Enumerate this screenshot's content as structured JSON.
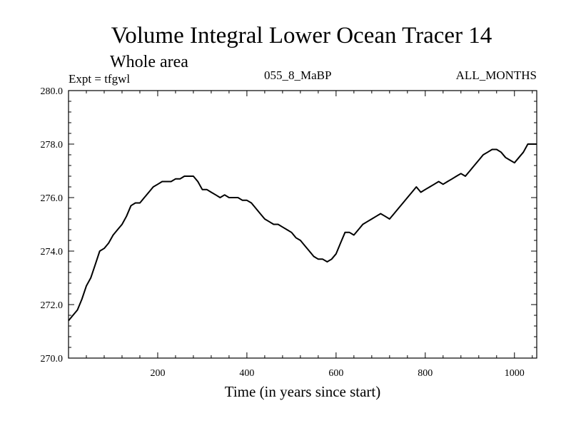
{
  "chart_data": {
    "type": "line",
    "title": "Volume Integral Lower Ocean Tracer 14",
    "subtitle": "Whole area",
    "annotations": {
      "experiment": "Expt = tfgwl",
      "run": "055_8_MaBP",
      "months": "ALL_MONTHS"
    },
    "xlabel": "Time (in years since start)",
    "ylabel": "",
    "xlim": [
      0,
      1050
    ],
    "ylim": [
      270.0,
      280.0
    ],
    "x_ticks": [
      200,
      400,
      600,
      800,
      1000
    ],
    "x_tick_labels": [
      "200",
      "400",
      "600",
      "800",
      "1000"
    ],
    "y_ticks": [
      270.0,
      272.0,
      274.0,
      276.0,
      278.0,
      280.0
    ],
    "y_tick_labels": [
      "270.0",
      "272.0",
      "274.0",
      "276.0",
      "278.0",
      "280.0"
    ],
    "series": [
      {
        "name": "Volume Integral Lower Ocean Tracer 14",
        "x": [
          0,
          10,
          20,
          30,
          40,
          50,
          60,
          70,
          80,
          90,
          100,
          110,
          120,
          130,
          140,
          150,
          160,
          170,
          180,
          190,
          200,
          210,
          220,
          230,
          240,
          250,
          260,
          270,
          280,
          290,
          300,
          310,
          320,
          330,
          340,
          350,
          360,
          370,
          380,
          390,
          400,
          410,
          420,
          430,
          440,
          450,
          460,
          470,
          480,
          490,
          500,
          510,
          520,
          530,
          540,
          550,
          560,
          570,
          580,
          590,
          600,
          610,
          620,
          630,
          640,
          650,
          660,
          670,
          680,
          690,
          700,
          710,
          720,
          730,
          740,
          750,
          760,
          770,
          780,
          790,
          800,
          810,
          820,
          830,
          840,
          850,
          860,
          870,
          880,
          890,
          900,
          910,
          920,
          930,
          940,
          950,
          960,
          970,
          980,
          990,
          1000,
          1010,
          1020,
          1030,
          1040,
          1050
        ],
        "values": [
          271.4,
          271.6,
          271.8,
          272.2,
          272.7,
          273.0,
          273.5,
          274.0,
          274.1,
          274.3,
          274.6,
          274.8,
          275.0,
          275.3,
          275.7,
          275.8,
          275.8,
          276.0,
          276.2,
          276.4,
          276.5,
          276.6,
          276.6,
          276.6,
          276.7,
          276.7,
          276.8,
          276.8,
          276.8,
          276.6,
          276.3,
          276.3,
          276.2,
          276.1,
          276.0,
          276.1,
          276.0,
          276.0,
          276.0,
          275.9,
          275.9,
          275.8,
          275.6,
          275.4,
          275.2,
          275.1,
          275.0,
          275.0,
          274.9,
          274.8,
          274.7,
          274.5,
          274.4,
          274.2,
          274.0,
          273.8,
          273.7,
          273.7,
          273.6,
          273.7,
          273.9,
          274.3,
          274.7,
          274.7,
          274.6,
          274.8,
          275.0,
          275.1,
          275.2,
          275.3,
          275.4,
          275.3,
          275.2,
          275.4,
          275.6,
          275.8,
          276.0,
          276.2,
          276.4,
          276.2,
          276.3,
          276.4,
          276.5,
          276.6,
          276.5,
          276.6,
          276.7,
          276.8,
          276.9,
          276.8,
          277.0,
          277.2,
          277.4,
          277.6,
          277.7,
          277.8,
          277.8,
          277.7,
          277.5,
          277.4,
          277.3,
          277.5,
          277.7,
          278.0,
          278.0,
          278.0
        ]
      }
    ],
    "grid": false
  }
}
